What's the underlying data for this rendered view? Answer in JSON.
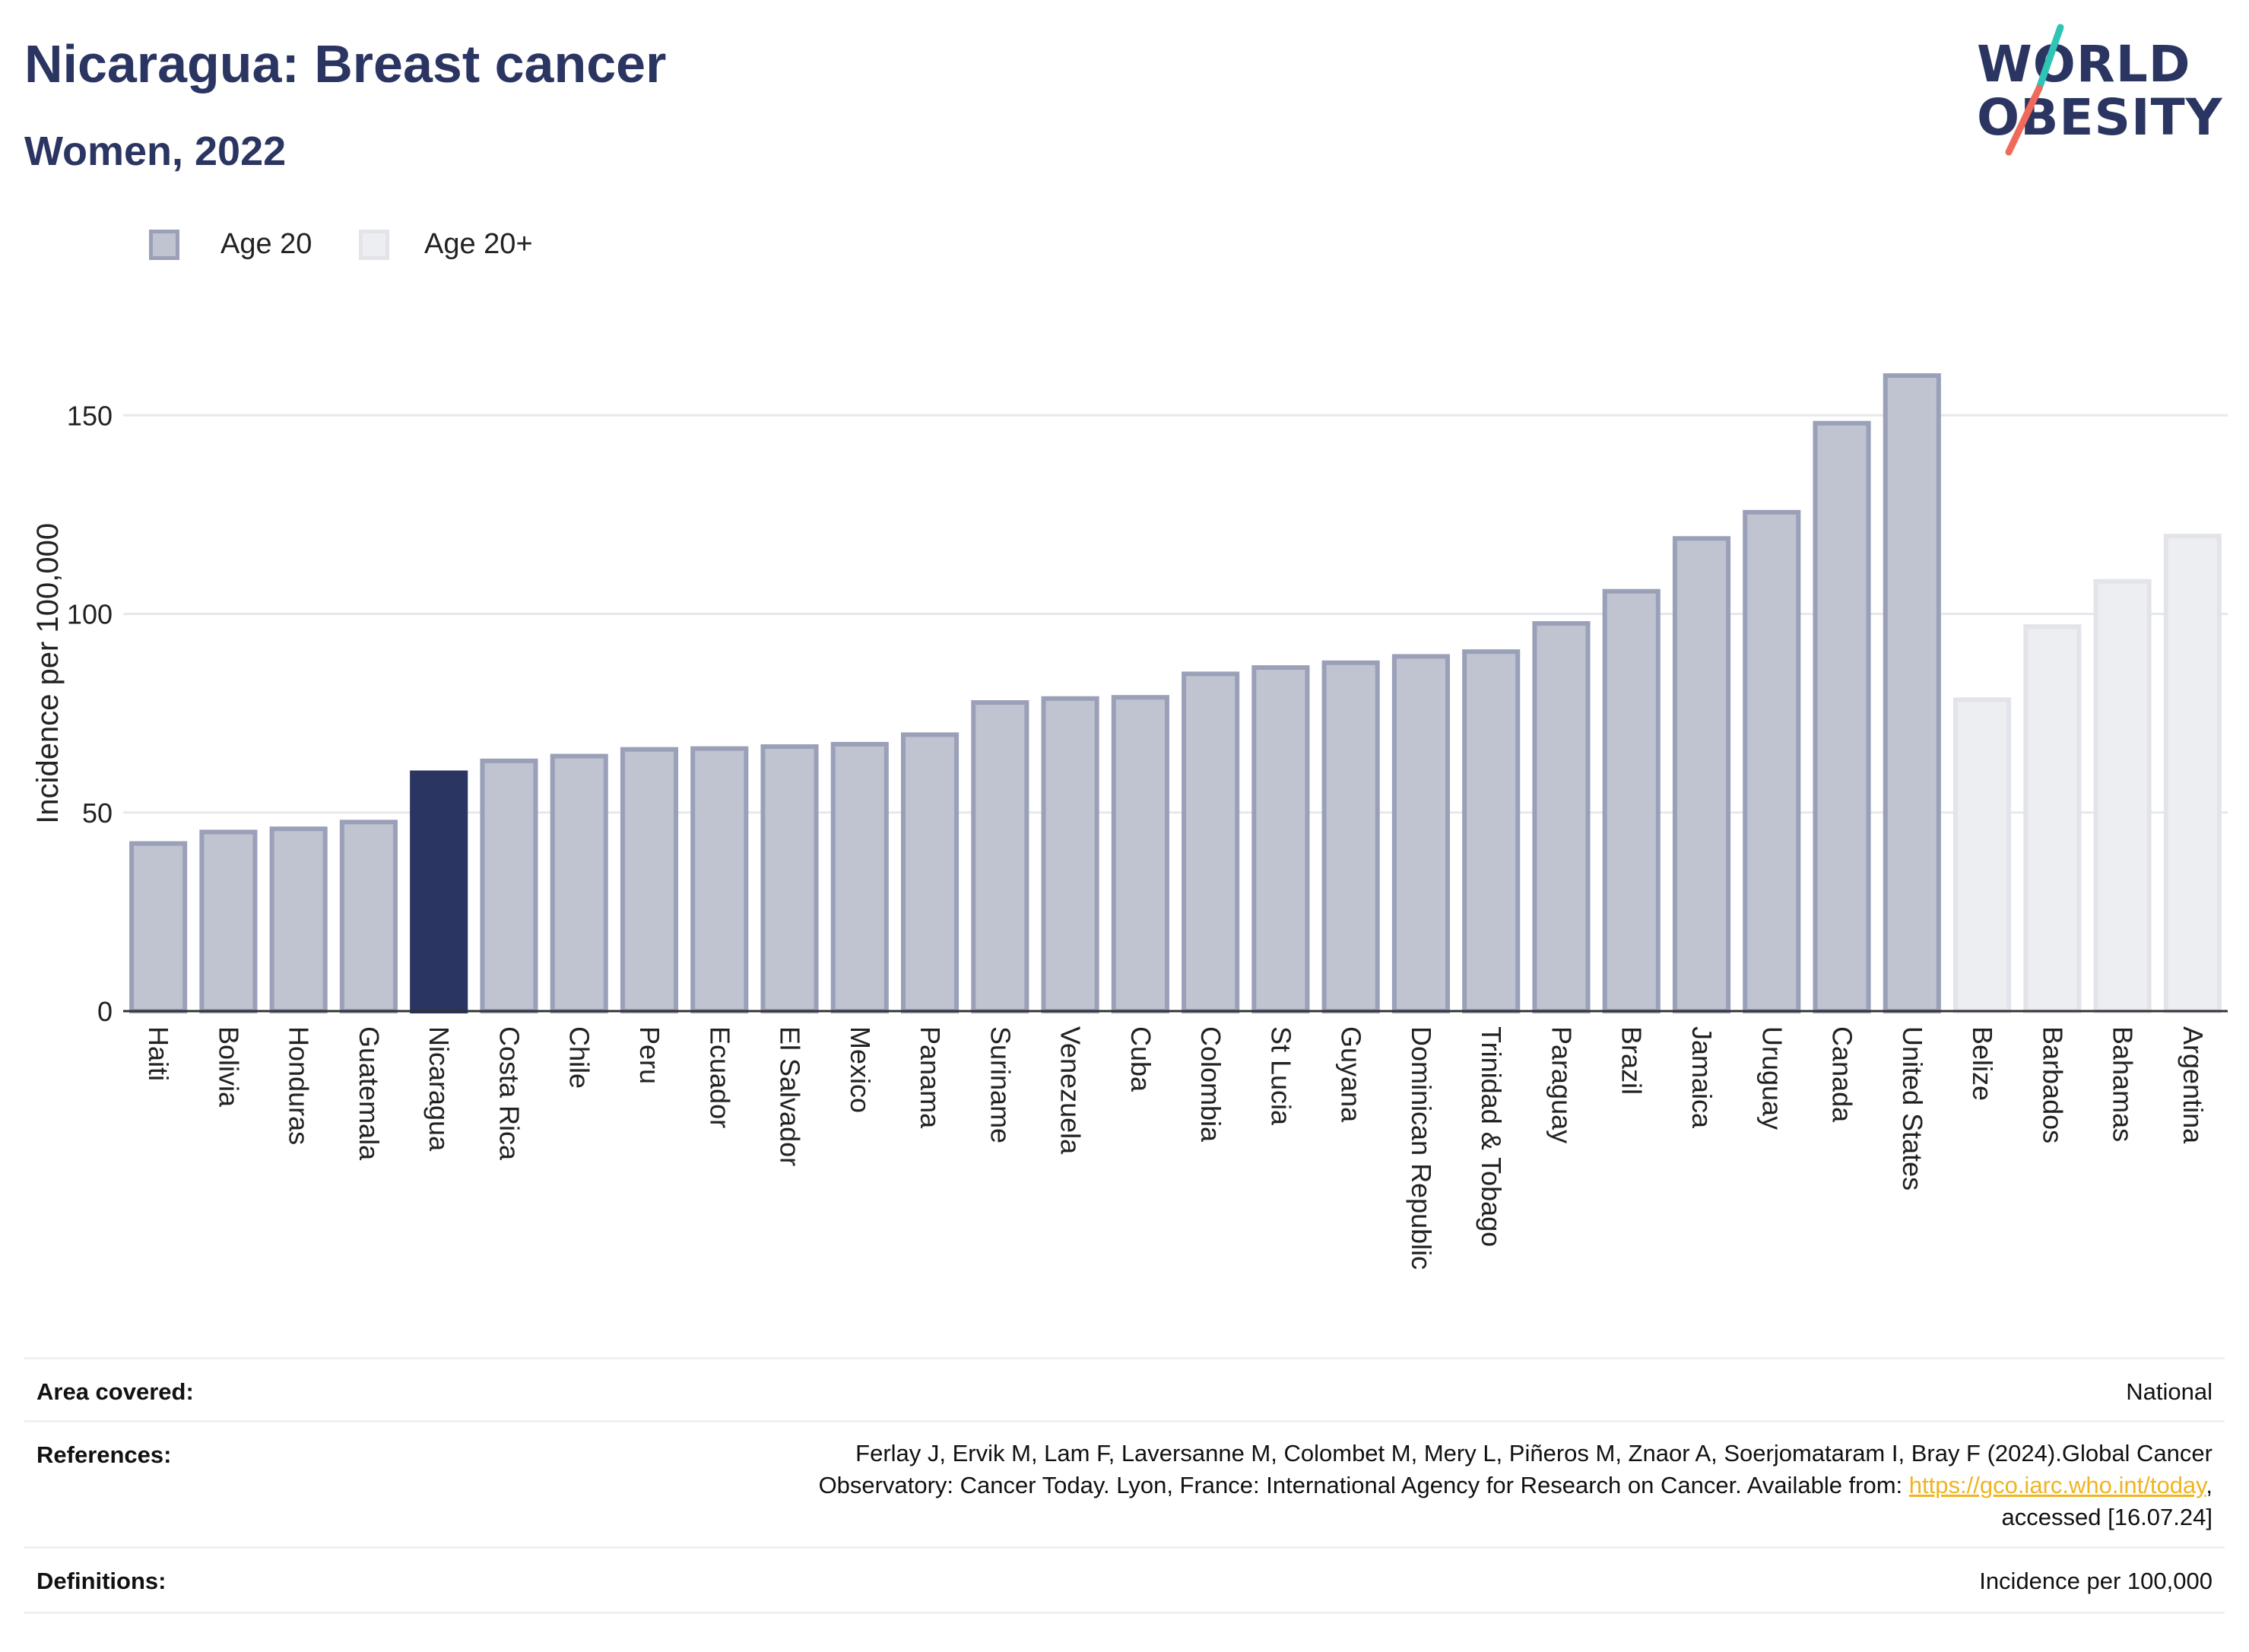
{
  "header": {
    "title": "Nicaragua: Breast cancer",
    "subtitle": "Women, 2022"
  },
  "logo": {
    "line1": "WORLD",
    "line2": "OBESITY",
    "colors": {
      "text": "#2b3561",
      "slash_top": "#2ec4b6",
      "slash_bottom": "#ef6a5a"
    }
  },
  "legend": {
    "items": [
      {
        "label": "Age 20",
        "fill": "#c0c3d0",
        "stroke": "#9aa0b8"
      },
      {
        "label": "Age 20+",
        "fill": "#eceef2",
        "stroke": "#e2e4ea"
      }
    ]
  },
  "chart_data": {
    "type": "bar",
    "ylabel": "Incidence per 100,000",
    "ylim": [
      0,
      175
    ],
    "yticks": [
      0,
      50,
      100,
      150
    ],
    "grid": true,
    "legend_position": "top-left",
    "highlight_category": "Nicaragua",
    "categories": [
      "Haiti",
      "Bolivia",
      "Honduras",
      "Guatemala",
      "Nicaragua",
      "Costa Rica",
      "Chile",
      "Peru",
      "Ecuador",
      "El Salvador",
      "Mexico",
      "Panama",
      "Suriname",
      "Venezuela",
      "Cuba",
      "Colombia",
      "St Lucia",
      "Guyana",
      "Dominican Republic",
      "Trinidad & Tobago",
      "Paraguay",
      "Brazil",
      "Jamaica",
      "Uruguay",
      "Canada",
      "United States",
      "Belize",
      "Barbados",
      "Bahamas",
      "Argentina"
    ],
    "values": [
      42.2,
      45.1,
      45.9,
      47.6,
      60.0,
      63.0,
      64.2,
      65.9,
      66.1,
      66.6,
      67.2,
      69.6,
      77.7,
      78.7,
      79.0,
      84.9,
      86.5,
      87.7,
      89.3,
      90.5,
      97.6,
      105.7,
      119.0,
      125.6,
      148.0,
      160.0,
      78.4,
      96.8,
      108.2,
      119.6
    ],
    "series_by_category": [
      "Age 20",
      "Age 20",
      "Age 20",
      "Age 20",
      "Age 20",
      "Age 20",
      "Age 20",
      "Age 20",
      "Age 20",
      "Age 20",
      "Age 20",
      "Age 20",
      "Age 20",
      "Age 20",
      "Age 20",
      "Age 20",
      "Age 20",
      "Age 20",
      "Age 20",
      "Age 20",
      "Age 20",
      "Age 20",
      "Age 20",
      "Age 20",
      "Age 20",
      "Age 20",
      "Age 20+",
      "Age 20+",
      "Age 20+",
      "Age 20+"
    ],
    "colors": {
      "age20_fill": "#c0c3d0",
      "age20_stroke": "#9aa0b8",
      "age20plus_fill": "#eceef2",
      "age20plus_stroke": "#e2e4ea",
      "highlight": "#2b3561",
      "grid": "#e6e8ee",
      "axis": "#333333"
    }
  },
  "info": {
    "area": {
      "key": "Area covered:",
      "value": "National"
    },
    "references": {
      "key": "References:",
      "line1": "Ferlay J, Ervik M, Lam F, Laversanne M, Colombet M, Mery L, Piñeros M, Znaor A, Soerjomataram I, Bray F (2024).Global Cancer",
      "line2_prefix": "Observatory: Cancer Today. Lyon, France: International Agency for Research on Cancer. Available from: ",
      "link": "https://gco.iarc.who.int/today",
      "line2_suffix": ",",
      "line3": "accessed [16.07.24]"
    },
    "definitions": {
      "key": "Definitions:",
      "value": "Incidence per 100,000"
    }
  }
}
